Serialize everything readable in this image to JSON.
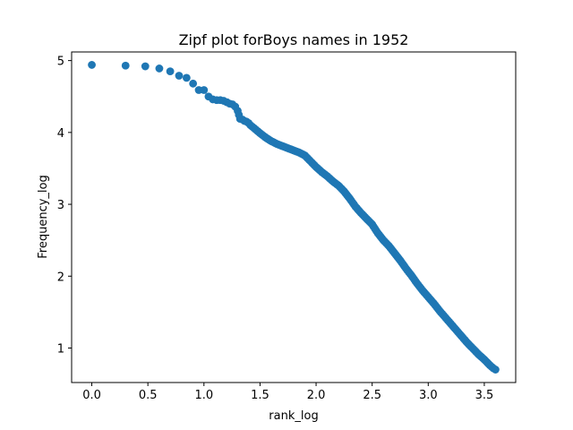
{
  "chart_data": {
    "type": "scatter",
    "title": "Zipf plot forBoys names in 1952",
    "xlabel": "rank_log",
    "ylabel": "Frequency_log",
    "xlim": [
      -0.18,
      3.78
    ],
    "ylim": [
      0.52,
      5.12
    ],
    "xticks": [
      0.0,
      0.5,
      1.0,
      1.5,
      2.0,
      2.5,
      3.0,
      3.5
    ],
    "xtick_labels": [
      "0.0",
      "0.5",
      "1.0",
      "1.5",
      "2.0",
      "2.5",
      "3.0",
      "3.5"
    ],
    "yticks": [
      1,
      2,
      3,
      4,
      5
    ],
    "ytick_labels": [
      "1",
      "2",
      "3",
      "4",
      "5"
    ],
    "grid": false,
    "marker_color": "#1f77b4",
    "series": [
      {
        "x": [
          0.0,
          0.301,
          0.477,
          0.602,
          0.699,
          0.778,
          0.845,
          0.903,
          0.954,
          1.0,
          1.041,
          1.079,
          1.114,
          1.146,
          1.176,
          1.204,
          1.23,
          1.255,
          1.279,
          1.301,
          1.322,
          1.342,
          1.362,
          1.38,
          1.398,
          1.415,
          1.431,
          1.447,
          1.462,
          1.477,
          1.5,
          1.55,
          1.6,
          1.65,
          1.7,
          1.75,
          1.8,
          1.85,
          1.9,
          1.95,
          2.0,
          2.05,
          2.1,
          2.15,
          2.2,
          2.25,
          2.3,
          2.35,
          2.4,
          2.45,
          2.5,
          2.55,
          2.6,
          2.65,
          2.7,
          2.75,
          2.8,
          2.85,
          2.9,
          2.95,
          3.0,
          3.05,
          3.1,
          3.15,
          3.2,
          3.25,
          3.3,
          3.35,
          3.4,
          3.45,
          3.5,
          3.55,
          3.58,
          3.6
        ],
        "y": [
          4.94,
          4.93,
          4.92,
          4.89,
          4.85,
          4.79,
          4.76,
          4.68,
          4.59,
          4.59,
          4.5,
          4.46,
          4.45,
          4.45,
          4.44,
          4.42,
          4.4,
          4.39,
          4.36,
          4.3,
          4.19,
          4.18,
          4.16,
          4.15,
          4.13,
          4.1,
          4.08,
          4.06,
          4.04,
          4.02,
          3.99,
          3.93,
          3.88,
          3.84,
          3.81,
          3.78,
          3.75,
          3.72,
          3.68,
          3.6,
          3.52,
          3.45,
          3.39,
          3.32,
          3.26,
          3.18,
          3.08,
          2.97,
          2.88,
          2.8,
          2.72,
          2.6,
          2.5,
          2.42,
          2.32,
          2.22,
          2.11,
          2.01,
          1.9,
          1.8,
          1.71,
          1.62,
          1.52,
          1.43,
          1.34,
          1.25,
          1.16,
          1.07,
          0.99,
          0.91,
          0.84,
          0.76,
          0.72,
          0.7
        ]
      }
    ]
  }
}
